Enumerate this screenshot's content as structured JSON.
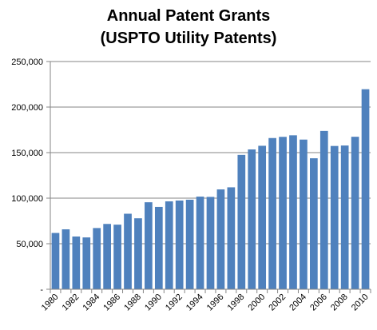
{
  "chart_data": {
    "type": "bar",
    "title_lines": [
      "Annual Patent Grants",
      "(USPTO Utility Patents)"
    ],
    "categories": [
      "1980",
      "1981",
      "1982",
      "1983",
      "1984",
      "1985",
      "1986",
      "1987",
      "1988",
      "1989",
      "1990",
      "1991",
      "1992",
      "1993",
      "1994",
      "1995",
      "1996",
      "1997",
      "1998",
      "1999",
      "2000",
      "2001",
      "2002",
      "2003",
      "2004",
      "2005",
      "2006",
      "2007",
      "2008",
      "2009",
      "2010"
    ],
    "x_tick_labels": [
      "1980",
      "1982",
      "1984",
      "1986",
      "1988",
      "1990",
      "1992",
      "1994",
      "1996",
      "1998",
      "2000",
      "2002",
      "2004",
      "2006",
      "2008",
      "2010"
    ],
    "values": [
      61800,
      65800,
      57900,
      56900,
      67200,
      71700,
      70900,
      82900,
      77900,
      95500,
      90400,
      96500,
      97400,
      98300,
      101700,
      101400,
      109600,
      111900,
      147500,
      153500,
      157500,
      166000,
      167300,
      169000,
      164300,
      143800,
      173800,
      157300,
      157800,
      167400,
      219600
    ],
    "y_ticks": [
      0,
      50000,
      100000,
      150000,
      200000,
      250000
    ],
    "y_tick_labels": [
      "-",
      "50,000",
      "100,000",
      "150,000",
      "200,000",
      "250,000"
    ],
    "ylim": [
      0,
      250000
    ],
    "grid": "horizontal",
    "bar_color": "#4F81BD",
    "xlabel": "",
    "ylabel": ""
  }
}
